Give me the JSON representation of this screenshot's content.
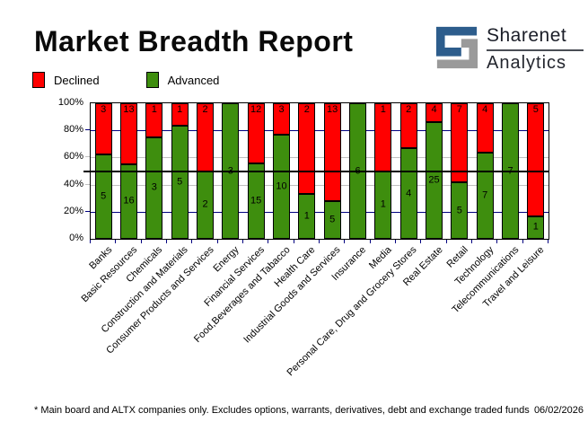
{
  "header": {
    "title": "Market Breadth Report",
    "logo": {
      "line1": "Sharenet",
      "line2": "Analytics",
      "blue": "#2d5d8c",
      "gray": "#9a9a9a"
    }
  },
  "legend": {
    "items": [
      {
        "label": "Declined",
        "color": "#ff0000"
      },
      {
        "label": "Advanced",
        "color": "#3e8e0e"
      }
    ]
  },
  "chart_data": {
    "type": "bar",
    "stacked": true,
    "units": "percent_of_total",
    "title": "Market Breadth Report",
    "categories": [
      "Banks",
      "Basic Resources",
      "Chemicals",
      "Construction and Materials",
      "Consumer Products and Services",
      "Energy",
      "Financial Services",
      "Food,Beverages and Tabacco",
      "Health Care",
      "Industrial Goods and Services",
      "Insurance",
      "Media",
      "Personal Care, Drug and Grocery Stores",
      "Real Estate",
      "Retail",
      "Technology",
      "Telecommunications",
      "Travel and Leisure"
    ],
    "series": [
      {
        "name": "Advanced",
        "color": "#3e8e0e",
        "values": [
          5,
          16,
          3,
          5,
          2,
          3,
          15,
          10,
          1,
          5,
          6,
          1,
          4,
          25,
          5,
          7,
          7,
          1
        ]
      },
      {
        "name": "Declined",
        "color": "#ff0000",
        "values": [
          3,
          13,
          1,
          1,
          2,
          0,
          12,
          3,
          2,
          13,
          0,
          1,
          2,
          4,
          7,
          4,
          0,
          5
        ]
      }
    ],
    "y_ticks": [
      "100%",
      "80%",
      "60%",
      "40%",
      "20%",
      "0%"
    ],
    "ylim": [
      0,
      100
    ],
    "reference_line": 50,
    "gridlines": {
      "navy_at": [
        80,
        20
      ],
      "gray_at": [
        60,
        40
      ],
      "navy_color": "#000080",
      "gray_color": "#c0c0c0"
    },
    "legend_position": "top-left"
  },
  "footer": {
    "note": "* Main board and ALTX companies only. Excludes options, warrants, derivatives, debt and exchange traded funds",
    "date": "06/02/2026"
  }
}
